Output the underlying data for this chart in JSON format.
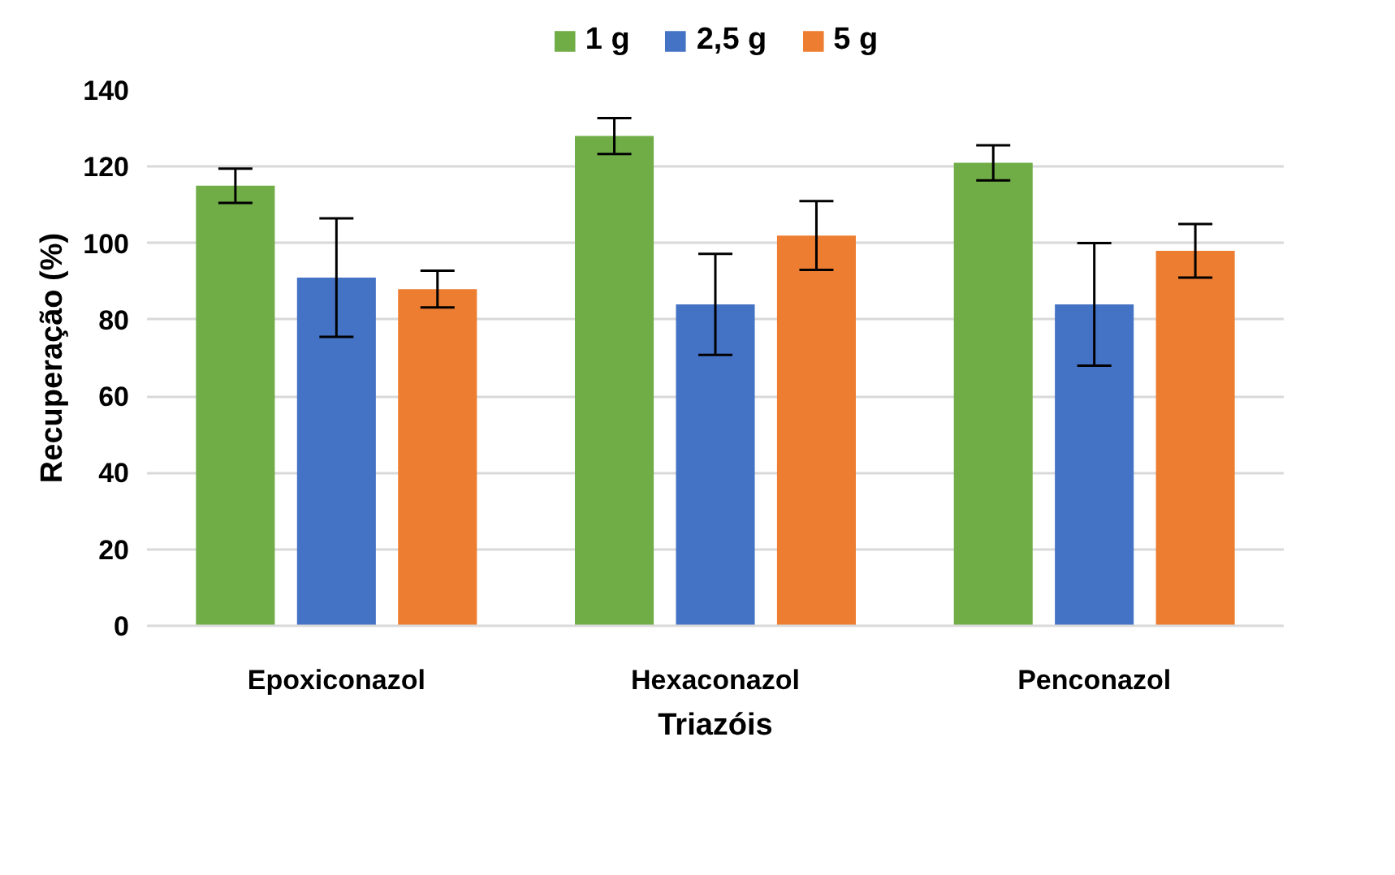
{
  "chart_data": {
    "type": "bar",
    "xlabel": "Triazóis",
    "ylabel": "Recuperação (%)",
    "categories": [
      "Epoxiconazol",
      "Hexaconazol",
      "Penconazol"
    ],
    "series": [
      {
        "name": "1 g",
        "color": "#70ad47",
        "values": [
          115,
          128,
          121
        ],
        "errors": [
          4.5,
          4.7,
          4.6
        ]
      },
      {
        "name": "2,5 g",
        "color": "#4472c4",
        "values": [
          91,
          84,
          84
        ],
        "errors": [
          15.5,
          13.2,
          16
        ]
      },
      {
        "name": "5 g",
        "color": "#ed7d31",
        "values": [
          88,
          102,
          98
        ],
        "errors": [
          4.8,
          9,
          7
        ]
      }
    ],
    "ylim": [
      0,
      140
    ],
    "yticks": [
      0,
      20,
      40,
      60,
      80,
      100,
      120,
      140
    ],
    "grid": "y",
    "legend": "top"
  }
}
